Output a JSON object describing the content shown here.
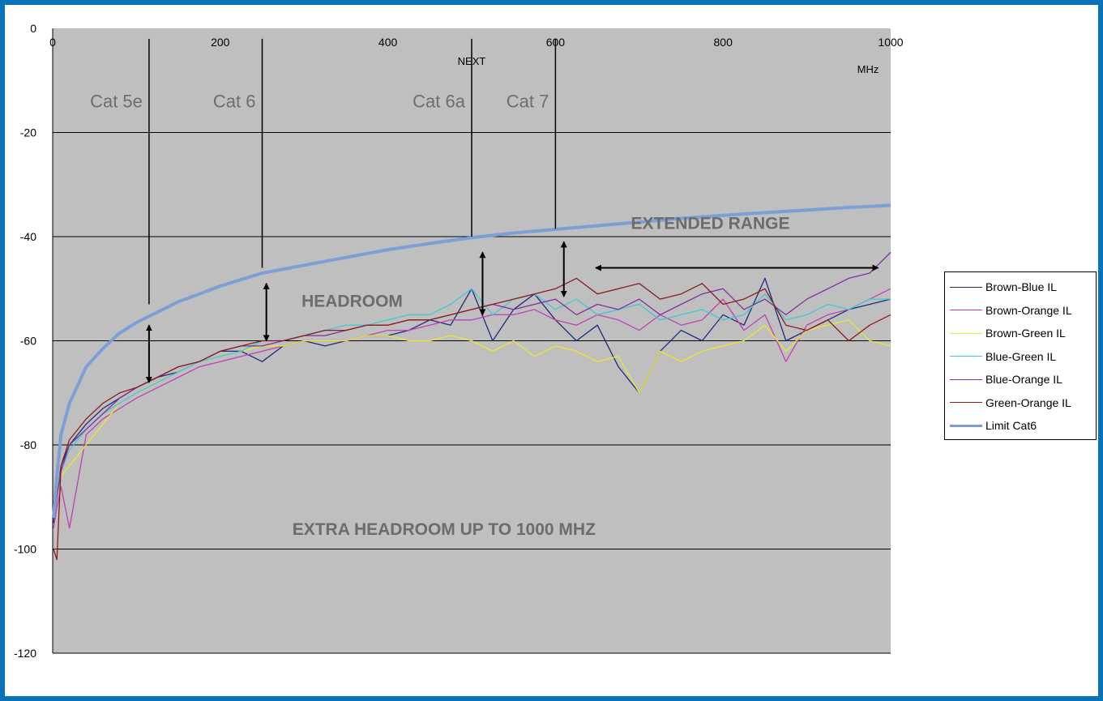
{
  "chart_data": {
    "type": "line",
    "title": "",
    "xlabel": "",
    "x_unit_label": "MHz",
    "ylabel": "",
    "xlim": [
      0,
      1000
    ],
    "ylim": [
      -120,
      0
    ],
    "x_ticks": [
      0,
      200,
      400,
      600,
      800,
      1000
    ],
    "y_ticks": [
      0,
      -20,
      -40,
      -60,
      -80,
      -100,
      -120
    ],
    "grid": "horizontal",
    "legend_position": "right",
    "background": "#bfbfbf",
    "annotations": {
      "next_label": "NEXT",
      "categories": [
        {
          "label": "Cat 5e",
          "x": 115
        },
        {
          "label": "Cat 6",
          "x": 250
        },
        {
          "label": "Cat 6a",
          "x": 500
        },
        {
          "label": "Cat 7",
          "x": 600
        }
      ],
      "headroom": "HEADROOM",
      "extended_range": "EXTENDED RANGE",
      "extra_headroom": "EXTRA HEADROOM UP TO 1000 MHZ"
    },
    "series": [
      {
        "name": "Brown-Blue IL",
        "color": "#1f2a7a",
        "x": [
          1,
          5,
          10,
          20,
          40,
          60,
          80,
          100,
          125,
          150,
          175,
          200,
          225,
          250,
          275,
          300,
          325,
          350,
          375,
          400,
          425,
          450,
          475,
          500,
          525,
          550,
          575,
          600,
          625,
          650,
          675,
          700,
          725,
          750,
          775,
          800,
          825,
          850,
          875,
          900,
          925,
          950,
          975,
          1000
        ],
        "y": [
          -95,
          -90,
          -84,
          -80,
          -76,
          -73,
          -71,
          -69,
          -67,
          -66,
          -64,
          -62,
          -62,
          -64,
          -61,
          -60,
          -61,
          -60,
          -59,
          -59,
          -58,
          -56,
          -57,
          -50,
          -60,
          -54,
          -51,
          -56,
          -60,
          -57,
          -65,
          -70,
          -62,
          -58,
          -60,
          -55,
          -57,
          -48,
          -60,
          -58,
          -56,
          -54,
          -53,
          -52
        ]
      },
      {
        "name": "Brown-Orange IL",
        "color": "#c040b8",
        "x": [
          1,
          5,
          10,
          20,
          40,
          60,
          80,
          100,
          125,
          150,
          175,
          200,
          225,
          250,
          275,
          300,
          325,
          350,
          375,
          400,
          425,
          450,
          475,
          500,
          525,
          550,
          575,
          600,
          625,
          650,
          675,
          700,
          725,
          750,
          775,
          800,
          825,
          850,
          875,
          900,
          925,
          950,
          975,
          1000
        ],
        "y": [
          -96,
          -92,
          -88,
          -96,
          -78,
          -75,
          -73,
          -71,
          -69,
          -67,
          -65,
          -64,
          -63,
          -62,
          -61,
          -60,
          -60,
          -60,
          -59,
          -58,
          -58,
          -57,
          -56,
          -56,
          -55,
          -55,
          -54,
          -56,
          -57,
          -55,
          -56,
          -58,
          -55,
          -57,
          -56,
          -52,
          -58,
          -55,
          -64,
          -57,
          -55,
          -54,
          -52,
          -50
        ]
      },
      {
        "name": "Brown-Green IL",
        "color": "#e8e832",
        "x": [
          1,
          5,
          10,
          20,
          40,
          60,
          80,
          100,
          125,
          150,
          175,
          200,
          225,
          250,
          275,
          300,
          325,
          350,
          375,
          400,
          425,
          450,
          475,
          500,
          525,
          550,
          575,
          600,
          625,
          650,
          675,
          700,
          725,
          750,
          775,
          800,
          825,
          850,
          875,
          900,
          925,
          950,
          975,
          1000
        ],
        "y": [
          -94,
          -90,
          -86,
          -84,
          -80,
          -76,
          -72,
          -70,
          -68,
          -66,
          -64,
          -63,
          -62,
          -61,
          -61,
          -60,
          -60,
          -60,
          -59,
          -59,
          -60,
          -60,
          -59,
          -60,
          -62,
          -60,
          -63,
          -61,
          -62,
          -64,
          -63,
          -70,
          -62,
          -64,
          -62,
          -61,
          -60,
          -57,
          -62,
          -58,
          -57,
          -56,
          -60,
          -61
        ]
      },
      {
        "name": "Blue-Green IL",
        "color": "#40c8d0",
        "x": [
          1,
          5,
          10,
          20,
          40,
          60,
          80,
          100,
          125,
          150,
          175,
          200,
          225,
          250,
          275,
          300,
          325,
          350,
          375,
          400,
          425,
          450,
          475,
          500,
          525,
          550,
          575,
          600,
          625,
          650,
          675,
          700,
          725,
          750,
          775,
          800,
          825,
          850,
          875,
          900,
          925,
          950,
          975,
          1000
        ],
        "y": [
          -93,
          -89,
          -85,
          -81,
          -77,
          -74,
          -72,
          -70,
          -68,
          -66,
          -64,
          -63,
          -62,
          -60,
          -60,
          -59,
          -58,
          -57,
          -57,
          -56,
          -55,
          -55,
          -53,
          -50,
          -55,
          -52,
          -51,
          -54,
          -52,
          -55,
          -54,
          -53,
          -56,
          -55,
          -54,
          -56,
          -55,
          -51,
          -56,
          -55,
          -53,
          -54,
          -52,
          -52
        ]
      },
      {
        "name": "Blue-Orange IL",
        "color": "#8030a0",
        "x": [
          1,
          5,
          10,
          20,
          40,
          60,
          80,
          100,
          125,
          150,
          175,
          200,
          225,
          250,
          275,
          300,
          325,
          350,
          375,
          400,
          425,
          450,
          475,
          500,
          525,
          550,
          575,
          600,
          625,
          650,
          675,
          700,
          725,
          750,
          775,
          800,
          825,
          850,
          875,
          900,
          925,
          950,
          975,
          1000
        ],
        "y": [
          -94,
          -90,
          -85,
          -80,
          -77,
          -74,
          -71,
          -69,
          -67,
          -65,
          -64,
          -62,
          -61,
          -61,
          -60,
          -59,
          -59,
          -58,
          -57,
          -57,
          -56,
          -56,
          -55,
          -54,
          -53,
          -54,
          -53,
          -52,
          -55,
          -53,
          -54,
          -52,
          -55,
          -53,
          -51,
          -50,
          -54,
          -52,
          -55,
          -52,
          -50,
          -48,
          -47,
          -43
        ]
      },
      {
        "name": "Green-Orange IL",
        "color": "#8b1c1c",
        "x": [
          1,
          5,
          10,
          20,
          40,
          60,
          80,
          100,
          125,
          150,
          175,
          200,
          225,
          250,
          275,
          300,
          325,
          350,
          375,
          400,
          425,
          450,
          475,
          500,
          525,
          550,
          575,
          600,
          625,
          650,
          675,
          700,
          725,
          750,
          775,
          800,
          825,
          850,
          875,
          900,
          925,
          950,
          975,
          1000
        ],
        "y": [
          -100,
          -102,
          -84,
          -79,
          -75,
          -72,
          -70,
          -69,
          -67,
          -65,
          -64,
          -62,
          -61,
          -60,
          -60,
          -59,
          -58,
          -58,
          -57,
          -57,
          -56,
          -56,
          -55,
          -54,
          -53,
          -52,
          -51,
          -50,
          -48,
          -51,
          -50,
          -49,
          -52,
          -51,
          -49,
          -53,
          -52,
          -50,
          -57,
          -58,
          -56,
          -60,
          -57,
          -55
        ]
      },
      {
        "name": "Limit Cat6",
        "color": "#7c9fd6",
        "thick": true,
        "x": [
          1,
          5,
          10,
          20,
          40,
          60,
          80,
          100,
          125,
          150,
          175,
          200,
          250,
          300,
          350,
          400,
          450,
          500,
          550,
          600,
          650,
          700,
          750,
          800,
          850,
          900,
          950,
          1000
        ],
        "y": [
          -94,
          -86,
          -78,
          -72,
          -65,
          -61.5,
          -58.5,
          -56.5,
          -54.5,
          -52.5,
          -51,
          -49.5,
          -47,
          -45.5,
          -44,
          -42.5,
          -41.3,
          -40.2,
          -39.3,
          -38.6,
          -37.9,
          -37.2,
          -36.5,
          -35.9,
          -35.4,
          -34.9,
          -34.4,
          -34
        ]
      }
    ]
  }
}
